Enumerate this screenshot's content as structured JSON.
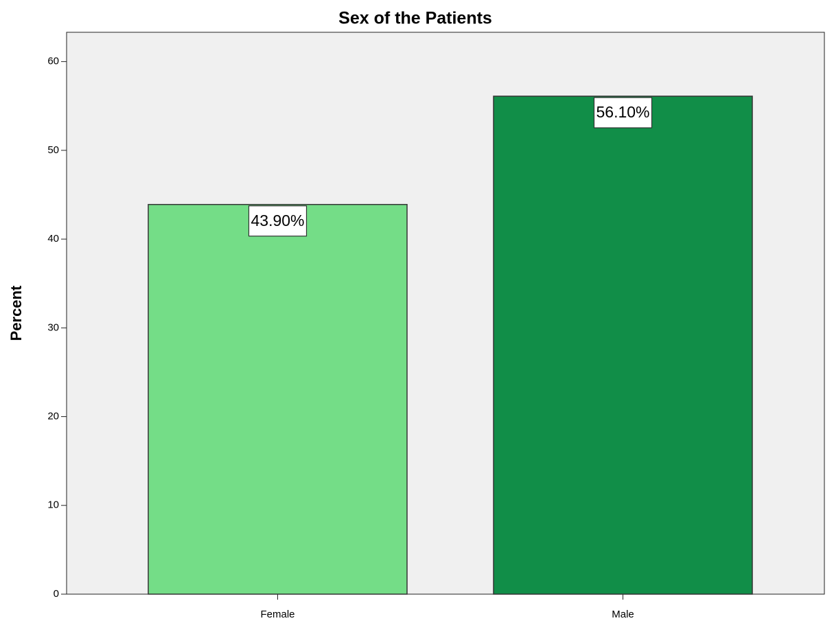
{
  "chart_data": {
    "type": "bar",
    "title": "Sex of the Patients",
    "y_label": "Percent",
    "categories": [
      "Female",
      "Male"
    ],
    "values": [
      43.9,
      56.1
    ],
    "value_labels": [
      "43.90%",
      "56.10%"
    ],
    "colors": [
      "#74dd87",
      "#118e48"
    ],
    "ylim": [
      0,
      63.3
    ],
    "yticks": [
      0,
      10,
      20,
      30,
      40,
      50,
      60
    ],
    "grid": false
  }
}
